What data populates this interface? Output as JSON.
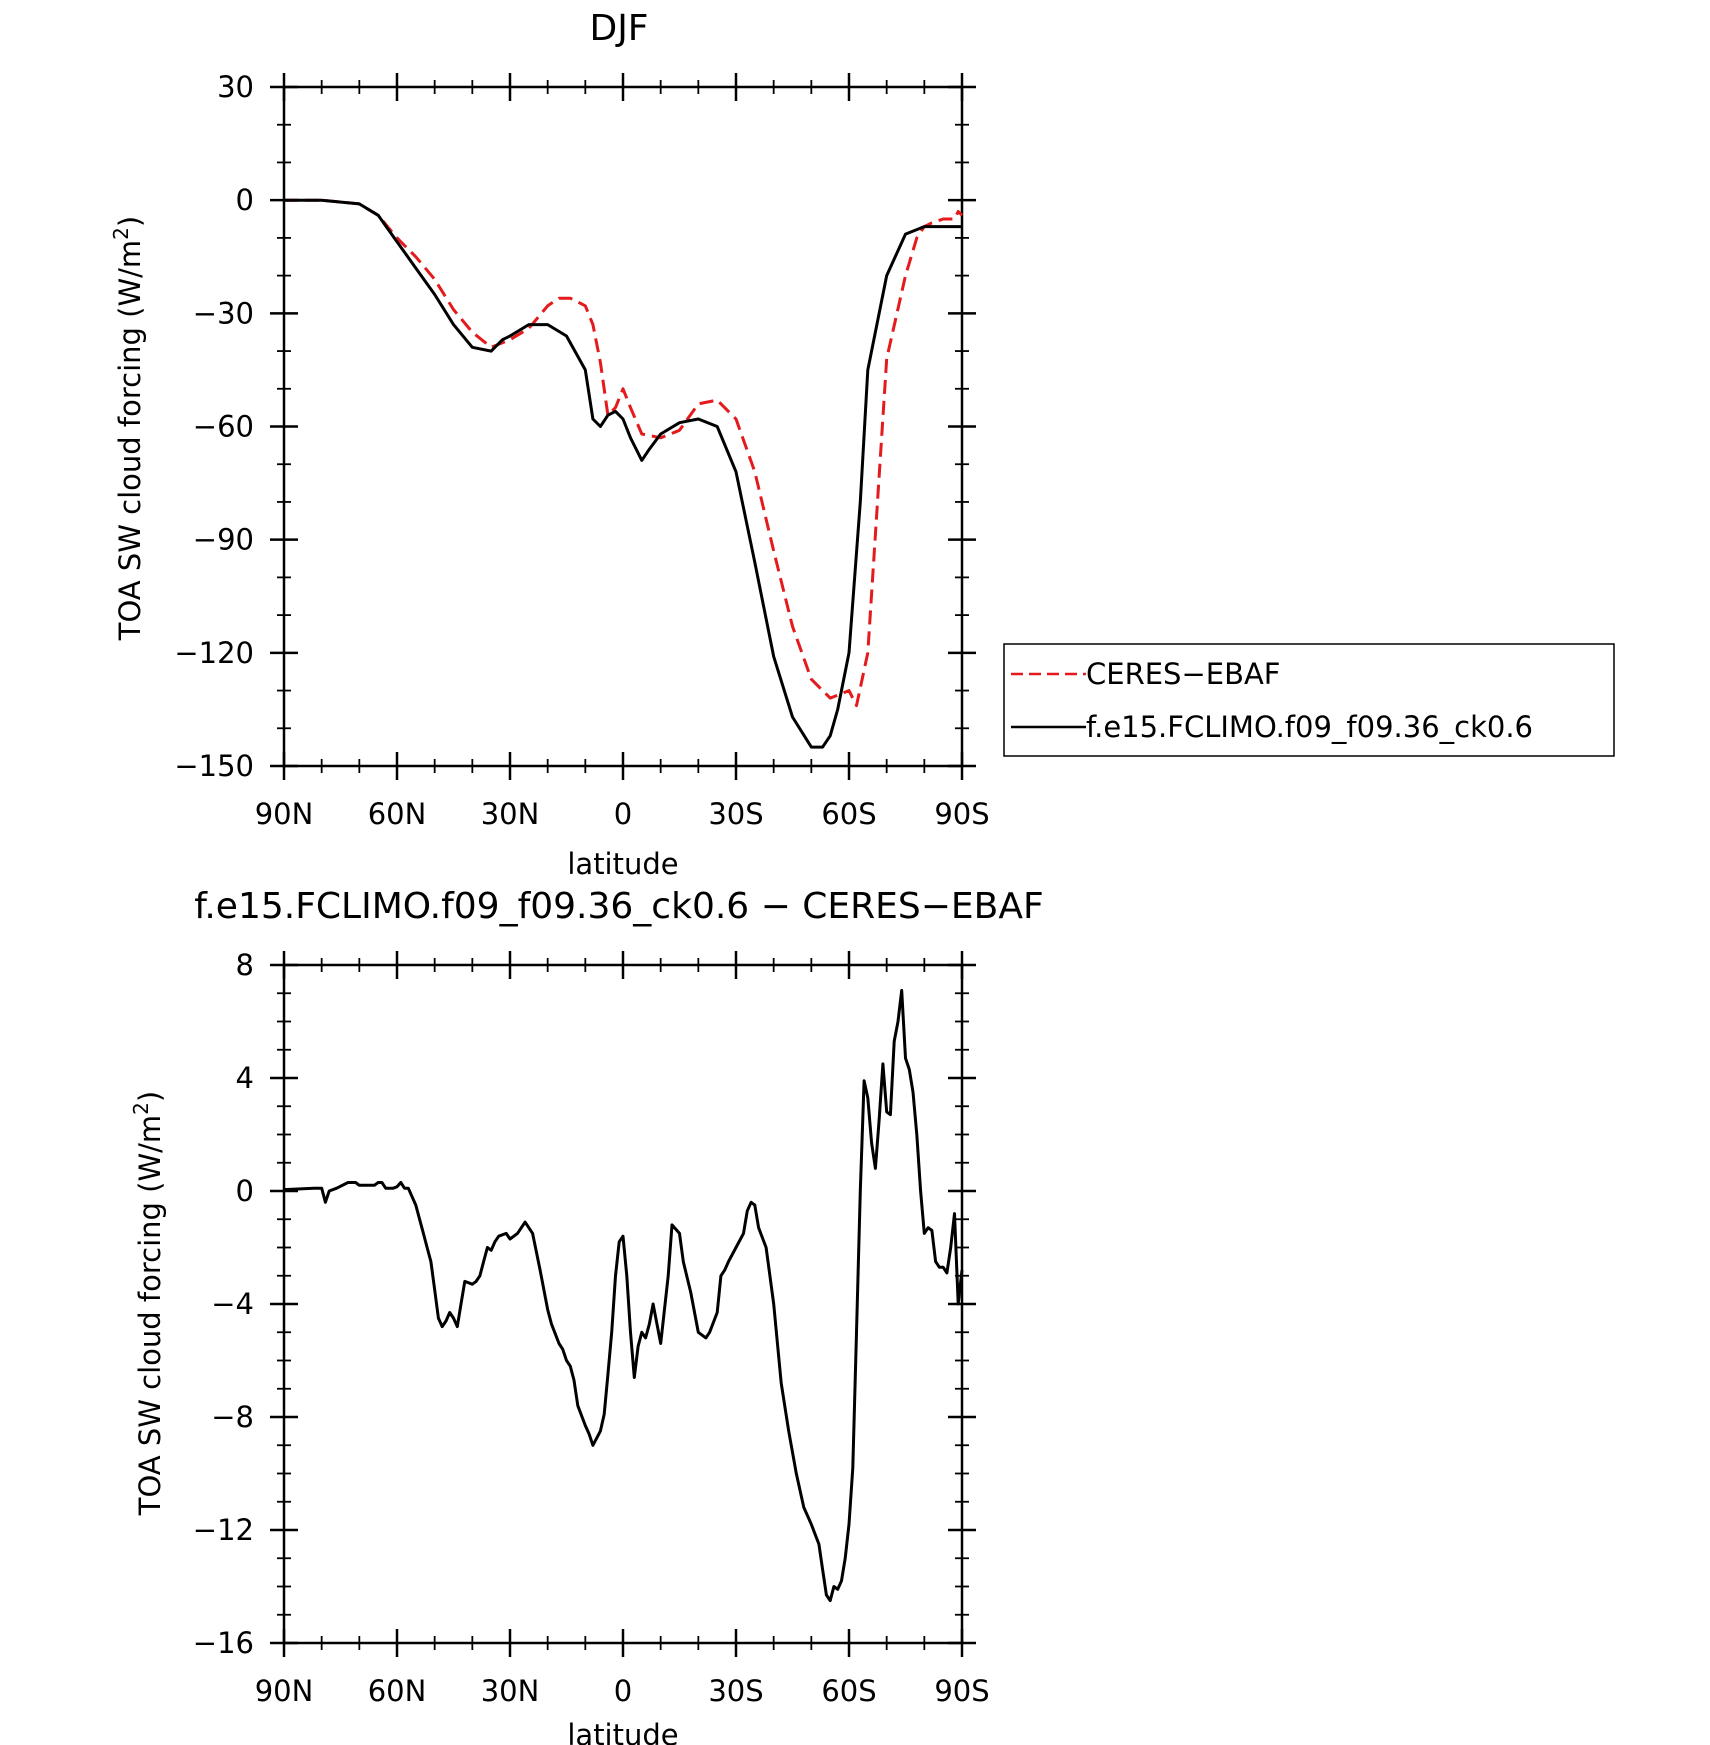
{
  "chart_data": [
    {
      "type": "line",
      "title": "DJF",
      "xlabel": "latitude",
      "ylabel": "TOA SW cloud forcing (W/m²)",
      "ylabel_text": "TOA SW cloud forcing (W/m",
      "ylabel_sup": "2",
      "ylabel_close": ")",
      "xlim": [
        90,
        -90
      ],
      "ylim": [
        -150,
        30
      ],
      "x_ticks": [
        90,
        60,
        30,
        0,
        -30,
        -60,
        -90
      ],
      "x_tick_labels": [
        "90N",
        "60N",
        "30N",
        "0",
        "30S",
        "60S",
        "90S"
      ],
      "y_ticks": [
        30,
        0,
        -30,
        -60,
        -90,
        -120,
        -150
      ],
      "y_tick_labels": [
        "30",
        "0",
        "−30",
        "−60",
        "−90",
        "−120",
        "−150"
      ],
      "legend": "right",
      "series": [
        {
          "name": "CERES−EBAF",
          "color": "#e41a1c",
          "dash": "dashed",
          "x": [
            90,
            80,
            70,
            65,
            60,
            55,
            50,
            45,
            40,
            35,
            30,
            25,
            20,
            17,
            14,
            10,
            8,
            6,
            4,
            2,
            0,
            -2,
            -5,
            -10,
            -15,
            -20,
            -25,
            -30,
            -35,
            -40,
            -45,
            -50,
            -55,
            -60,
            -62,
            -65,
            -70,
            -75,
            -78,
            -80,
            -82,
            -85,
            -88,
            -89,
            -90
          ],
          "values": [
            0,
            0,
            -1,
            -4,
            -10,
            -15,
            -21,
            -29,
            -35,
            -39,
            -37,
            -34,
            -28,
            -26,
            -26,
            -28,
            -33,
            -43,
            -57,
            -55,
            -50,
            -55,
            -62,
            -63,
            -61,
            -54,
            -53,
            -58,
            -72,
            -93,
            -113,
            -127,
            -132,
            -130,
            -134,
            -120,
            -42,
            -20,
            -10,
            -7,
            -6,
            -5,
            -5,
            -3,
            -4
          ]
        },
        {
          "name": "f.e15.FCLIMO.f09_f09.36_ck0.6",
          "color": "#000000",
          "dash": "solid",
          "x": [
            90,
            80,
            70,
            65,
            60,
            55,
            50,
            45,
            40,
            35,
            32,
            30,
            25,
            20,
            15,
            10,
            8,
            6,
            4,
            2,
            0,
            -2,
            -5,
            -7,
            -10,
            -15,
            -20,
            -25,
            -30,
            -35,
            -40,
            -45,
            -50,
            -53,
            -55,
            -57,
            -60,
            -63,
            -65,
            -70,
            -75,
            -80,
            -85,
            -90
          ],
          "values": [
            0,
            0,
            -1,
            -4,
            -11,
            -18,
            -25,
            -33,
            -39,
            -40,
            -37,
            -36,
            -33,
            -33,
            -36,
            -45,
            -58,
            -60,
            -57,
            -56,
            -58,
            -63,
            -69,
            -66,
            -62,
            -59,
            -58,
            -60,
            -72,
            -96,
            -121,
            -137,
            -145,
            -145,
            -142,
            -135,
            -120,
            -80,
            -45,
            -20,
            -9,
            -7,
            -7,
            -7
          ]
        }
      ]
    },
    {
      "type": "line",
      "title": "f.e15.FCLIMO.f09_f09.36_ck0.6 − CERES−EBAF",
      "xlabel": "latitude",
      "ylabel": "TOA SW cloud forcing (W/m²)",
      "ylabel_text": "TOA SW cloud forcing (W/m",
      "ylabel_sup": "2",
      "ylabel_close": ")",
      "xlim": [
        90,
        -90
      ],
      "ylim": [
        -16,
        8
      ],
      "x_ticks": [
        90,
        60,
        30,
        0,
        -30,
        -60,
        -90
      ],
      "x_tick_labels": [
        "90N",
        "60N",
        "30N",
        "0",
        "30S",
        "60S",
        "90S"
      ],
      "y_ticks": [
        8,
        4,
        0,
        -4,
        -8,
        -12,
        -16
      ],
      "y_tick_labels": [
        "8",
        "4",
        "0",
        "−4",
        "−8",
        "−12",
        "−16"
      ],
      "series": [
        {
          "color": "#000000",
          "dash": "solid",
          "x": [
            90,
            82,
            80,
            79,
            78,
            76,
            73,
            71,
            70,
            69,
            67,
            66,
            65,
            64,
            63,
            62,
            61,
            60,
            59,
            58,
            57,
            55,
            54,
            53,
            52,
            51,
            50,
            49,
            48,
            47,
            46,
            45,
            44,
            43,
            42,
            40,
            39,
            38,
            37,
            36,
            35,
            34,
            33,
            31,
            30,
            28,
            26,
            24,
            22,
            20,
            19,
            17,
            16,
            15,
            14,
            13,
            12,
            10,
            9,
            8,
            6,
            5,
            4,
            3,
            2,
            1,
            0,
            -1,
            -2,
            -3,
            -4,
            -5,
            -6,
            -7,
            -8,
            -10,
            -12,
            -13,
            -15,
            -16,
            -18,
            -20,
            -22,
            -23,
            -25,
            -26,
            -27,
            -28,
            -30,
            -32,
            -33,
            -34,
            -35,
            -36,
            -38,
            -40,
            -42,
            -44,
            -46,
            -48,
            -49,
            -50,
            -52,
            -53,
            -54,
            -55,
            -56,
            -57,
            -58,
            -59,
            -60,
            -61,
            -62,
            -63,
            -64,
            -65,
            -66,
            -67,
            -68,
            -69,
            -70,
            -71,
            -72,
            -73,
            -74,
            -75,
            -76,
            -77,
            -78,
            -79,
            -80,
            -81,
            -82,
            -83,
            -84,
            -85,
            -86,
            -87,
            -88,
            -89,
            -90
          ],
          "values": [
            0.05,
            0.1,
            0.1,
            -0.4,
            0,
            0.1,
            0.3,
            0.3,
            0.2,
            0.2,
            0.2,
            0.2,
            0.3,
            0.3,
            0.1,
            0.1,
            0.1,
            0.15,
            0.3,
            0.1,
            0.1,
            -0.5,
            -1.0,
            -1.5,
            -2.0,
            -2.5,
            -3.5,
            -4.5,
            -4.8,
            -4.6,
            -4.3,
            -4.5,
            -4.8,
            -4.0,
            -3.2,
            -3.3,
            -3.2,
            -3.0,
            -2.5,
            -2.0,
            -2.1,
            -1.8,
            -1.6,
            -1.5,
            -1.7,
            -1.5,
            -1.1,
            -1.5,
            -2.8,
            -4.2,
            -4.7,
            -5.4,
            -5.6,
            -6.0,
            -6.2,
            -6.7,
            -7.6,
            -8.3,
            -8.6,
            -9.0,
            -8.5,
            -7.9,
            -6.5,
            -5.0,
            -3.0,
            -1.8,
            -1.6,
            -3.0,
            -5.0,
            -6.6,
            -5.5,
            -5.0,
            -5.2,
            -4.7,
            -4.0,
            -5.4,
            -3.0,
            -1.2,
            -1.5,
            -2.5,
            -3.6,
            -5.0,
            -5.2,
            -5.0,
            -4.3,
            -3.0,
            -2.8,
            -2.5,
            -2.0,
            -1.5,
            -0.7,
            -0.4,
            -0.5,
            -1.3,
            -2.0,
            -4.0,
            -6.8,
            -8.5,
            -10.0,
            -11.2,
            -11.5,
            -11.8,
            -12.5,
            -13.4,
            -14.3,
            -14.5,
            -14.0,
            -14.1,
            -13.8,
            -13.0,
            -11.8,
            -9.8,
            -5.0,
            0.0,
            3.9,
            3.3,
            1.7,
            0.8,
            2.5,
            4.5,
            2.8,
            2.7,
            5.3,
            6.0,
            7.1,
            4.7,
            4.3,
            3.5,
            2.0,
            0.0,
            -1.5,
            -1.3,
            -1.4,
            -2.5,
            -2.7,
            -2.7,
            -2.9,
            -2.0,
            -0.8,
            -4.0,
            -2.8
          ]
        }
      ]
    }
  ],
  "legend": {
    "items": [
      {
        "label": "CERES−EBAF"
      },
      {
        "label": "f.e15.FCLIMO.f09_f09.36_ck0.6"
      }
    ]
  }
}
